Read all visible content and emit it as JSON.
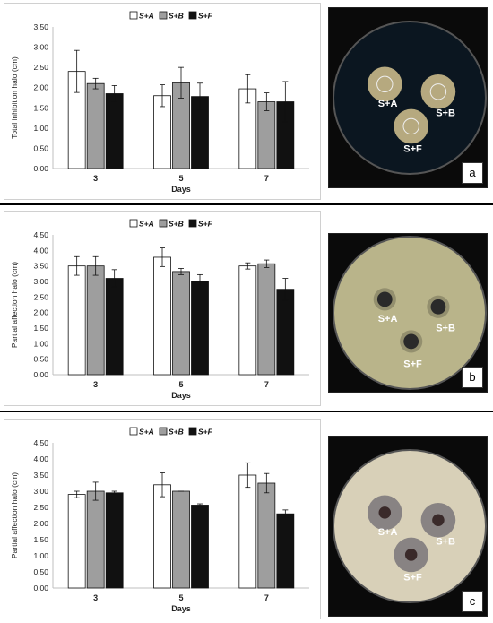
{
  "chart_data": [
    {
      "type": "bar",
      "ylabel": "Total inhibition halo (cm)",
      "xlabel": "Days",
      "categories": [
        "3",
        "5",
        "7"
      ],
      "ylim": [
        0,
        3.5
      ],
      "yticks": [
        "0.00",
        "0.50",
        "1.00",
        "1.50",
        "2.00",
        "2.50",
        "3.00",
        "3.50"
      ],
      "legend_position": "top-center",
      "series": [
        {
          "name": "S+A",
          "color": "#ffffff",
          "values": [
            2.4,
            1.8,
            1.97
          ],
          "errors": [
            0.52,
            0.27,
            0.35
          ]
        },
        {
          "name": "S+B",
          "color": "#9e9e9e",
          "values": [
            2.1,
            2.12,
            1.65
          ],
          "errors": [
            0.13,
            0.38,
            0.22
          ]
        },
        {
          "name": "S+F",
          "color": "#111111",
          "values": [
            1.85,
            1.78,
            1.65
          ],
          "errors": [
            0.2,
            0.33,
            0.5
          ]
        }
      ]
    },
    {
      "type": "bar",
      "ylabel": "Partial affection halo (cm)",
      "xlabel": "Days",
      "categories": [
        "3",
        "5",
        "7"
      ],
      "ylim": [
        0,
        4.5
      ],
      "yticks": [
        "0.00",
        "0.50",
        "1.00",
        "1.50",
        "2.00",
        "2.50",
        "3.00",
        "3.50",
        "4.00",
        "4.50"
      ],
      "legend_position": "top-center",
      "series": [
        {
          "name": "S+A",
          "color": "#ffffff",
          "values": [
            3.5,
            3.78,
            3.5
          ],
          "errors": [
            0.3,
            0.3,
            0.1
          ]
        },
        {
          "name": "S+B",
          "color": "#9e9e9e",
          "values": [
            3.5,
            3.32,
            3.57
          ],
          "errors": [
            0.3,
            0.1,
            0.12
          ]
        },
        {
          "name": "S+F",
          "color": "#111111",
          "values": [
            3.1,
            3.0,
            2.75
          ],
          "errors": [
            0.28,
            0.22,
            0.35
          ]
        }
      ]
    },
    {
      "type": "bar",
      "ylabel": "Partial affection halo (cm)",
      "xlabel": "Days",
      "categories": [
        "3",
        "5",
        "7"
      ],
      "ylim": [
        0,
        4.5
      ],
      "yticks": [
        "0.00",
        "0.50",
        "1.00",
        "1.50",
        "2.00",
        "2.50",
        "3.00",
        "3.50",
        "4.00",
        "4.50"
      ],
      "legend_position": "top-center",
      "series": [
        {
          "name": "S+A",
          "color": "#ffffff",
          "values": [
            2.9,
            3.2,
            3.5
          ],
          "errors": [
            0.1,
            0.37,
            0.38
          ]
        },
        {
          "name": "S+B",
          "color": "#9e9e9e",
          "values": [
            3.0,
            3.0,
            3.25
          ],
          "errors": [
            0.28,
            0.0,
            0.3
          ]
        },
        {
          "name": "S+F",
          "color": "#111111",
          "values": [
            2.95,
            2.57,
            2.3
          ],
          "errors": [
            0.05,
            0.04,
            0.12
          ]
        }
      ]
    }
  ],
  "photos": [
    {
      "letter": "a",
      "labels": [
        "S+A",
        "S+B",
        "S+F"
      ],
      "background": "#0b1620",
      "halo_color": "#c9b98a"
    },
    {
      "letter": "b",
      "labels": [
        "S+A",
        "S+B",
        "S+F"
      ],
      "background": "#b9b48a",
      "halo_color": "#2a2a2a"
    },
    {
      "letter": "c",
      "labels": [
        "S+A",
        "S+B",
        "S+F"
      ],
      "background": "#d8d0b8",
      "halo_color": "#6e6a72"
    }
  ]
}
